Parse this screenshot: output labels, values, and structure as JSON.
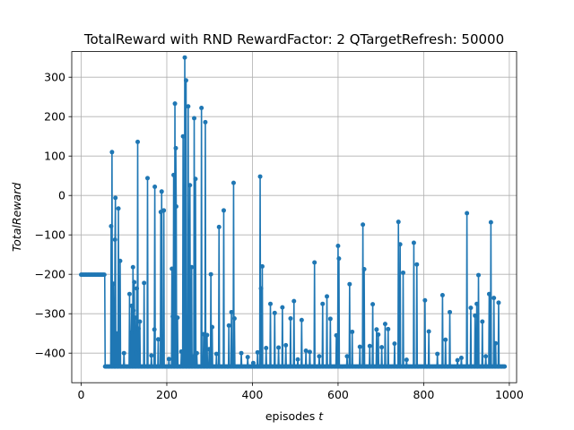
{
  "chart_data": {
    "type": "line",
    "title": "TotalReward with RND RewardFactor: 2 QTargetRefresh: 50000",
    "xlabel": "episodes",
    "xlabel_var": "t",
    "ylabel": "TotalReward",
    "xlim": [
      -22,
      1017
    ],
    "ylim": [
      -475,
      365
    ],
    "xticks": [
      0,
      200,
      400,
      600,
      800,
      1000
    ],
    "yticks": [
      -400,
      -300,
      -200,
      -100,
      0,
      100,
      200,
      300
    ],
    "grid": true,
    "series": [
      {
        "color": "#1f77b4",
        "baseline": -434,
        "start_segment": {
          "x_from": 0,
          "x_to": 55,
          "value": -201
        },
        "x_end": 990,
        "spikes": [
          [
            70,
            -78
          ],
          [
            72,
            110
          ],
          [
            75,
            -224
          ],
          [
            79,
            -112
          ],
          [
            80,
            -6
          ],
          [
            83,
            -350
          ],
          [
            87,
            -33
          ],
          [
            91,
            -166
          ],
          [
            100,
            -400
          ],
          [
            113,
            -250
          ],
          [
            117,
            -348
          ],
          [
            118,
            -280
          ],
          [
            121,
            -182
          ],
          [
            122,
            -292
          ],
          [
            124,
            -220
          ],
          [
            126,
            -310
          ],
          [
            128,
            -400
          ],
          [
            130,
            -236
          ],
          [
            132,
            136
          ],
          [
            134,
            -338
          ],
          [
            137,
            -320
          ],
          [
            147,
            -222
          ],
          [
            155,
            44
          ],
          [
            164,
            -406
          ],
          [
            171,
            -340
          ],
          [
            172,
            22
          ],
          [
            180,
            -365
          ],
          [
            186,
            -42
          ],
          [
            188,
            10
          ],
          [
            193,
            -38
          ],
          [
            205,
            -415
          ],
          [
            212,
            -186
          ],
          [
            214,
            -307
          ],
          [
            216,
            52
          ],
          [
            219,
            233
          ],
          [
            221,
            120
          ],
          [
            222,
            -28
          ],
          [
            225,
            -310
          ],
          [
            234,
            -396
          ],
          [
            238,
            150
          ],
          [
            242,
            350
          ],
          [
            245,
            292
          ],
          [
            250,
            226
          ],
          [
            254,
            26
          ],
          [
            258,
            -182
          ],
          [
            262,
            -408
          ],
          [
            264,
            196
          ],
          [
            267,
            42
          ],
          [
            270,
            -400
          ],
          [
            281,
            222
          ],
          [
            286,
            -352
          ],
          [
            290,
            186
          ],
          [
            294,
            -354
          ],
          [
            299,
            -390
          ],
          [
            303,
            -200
          ],
          [
            306,
            -334
          ],
          [
            316,
            -402
          ],
          [
            322,
            -80
          ],
          [
            333,
            -38
          ],
          [
            345,
            -330
          ],
          [
            351,
            -296
          ],
          [
            356,
            32
          ],
          [
            358,
            -312
          ],
          [
            374,
            -400
          ],
          [
            389,
            -410
          ],
          [
            402,
            -425
          ],
          [
            412,
            -398
          ],
          [
            418,
            48
          ],
          [
            420,
            -236
          ],
          [
            423,
            -180
          ],
          [
            432,
            -387
          ],
          [
            442,
            -275
          ],
          [
            452,
            -298
          ],
          [
            461,
            -386
          ],
          [
            470,
            -284
          ],
          [
            478,
            -380
          ],
          [
            489,
            -312
          ],
          [
            497,
            -268
          ],
          [
            506,
            -416
          ],
          [
            515,
            -316
          ],
          [
            525,
            -394
          ],
          [
            534,
            -397
          ],
          [
            545,
            -170
          ],
          [
            556,
            -408
          ],
          [
            564,
            -275
          ],
          [
            574,
            -256
          ],
          [
            582,
            -313
          ],
          [
            596,
            -355
          ],
          [
            600,
            -128
          ],
          [
            602,
            -160
          ],
          [
            621,
            -408
          ],
          [
            627,
            -225
          ],
          [
            633,
            -346
          ],
          [
            651,
            -384
          ],
          [
            658,
            -74
          ],
          [
            661,
            -187
          ],
          [
            674,
            -382
          ],
          [
            681,
            -276
          ],
          [
            690,
            -340
          ],
          [
            694,
            -353
          ],
          [
            702,
            -385
          ],
          [
            710,
            -326
          ],
          [
            717,
            -339
          ],
          [
            732,
            -376
          ],
          [
            741,
            -67
          ],
          [
            745,
            -124
          ],
          [
            752,
            -196
          ],
          [
            760,
            -417
          ],
          [
            777,
            -120
          ],
          [
            784,
            -175
          ],
          [
            803,
            -266
          ],
          [
            812,
            -345
          ],
          [
            832,
            -402
          ],
          [
            844,
            -253
          ],
          [
            851,
            -366
          ],
          [
            861,
            -296
          ],
          [
            879,
            -418
          ],
          [
            888,
            -412
          ],
          [
            901,
            -45
          ],
          [
            910,
            -285
          ],
          [
            920,
            -305
          ],
          [
            924,
            -275
          ],
          [
            928,
            -202
          ],
          [
            937,
            -320
          ],
          [
            945,
            -408
          ],
          [
            953,
            -250
          ],
          [
            957,
            -68
          ],
          [
            964,
            -260
          ],
          [
            968,
            -375
          ],
          [
            975,
            -272
          ]
        ]
      }
    ]
  }
}
